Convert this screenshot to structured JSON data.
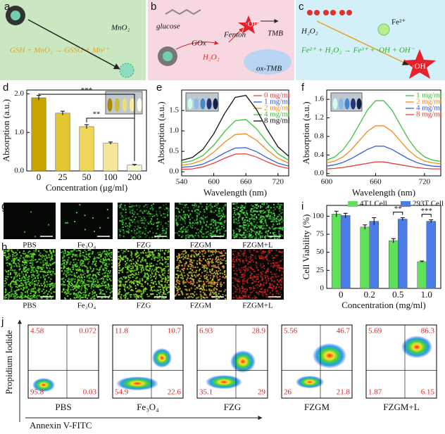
{
  "panels": {
    "a": {
      "label": "a",
      "reagent": "MnO₂",
      "equation": "GSH + MnO₂ → GSSG + Mn²⁺"
    },
    "b": {
      "label": "b",
      "glucose": "glucose",
      "enzyme": "GOx",
      "peroxide": "H₂O₂",
      "reaction": "Fenton",
      "radical": "·OH",
      "substrate": "TMB",
      "product": "ox-TMB"
    },
    "c": {
      "label": "c",
      "ion": "Fe²⁺",
      "peroxide": "H₂O₂",
      "equation": "Fe²⁺ + H₂O₂ → Fe³⁺ + ·OH + OH⁻",
      "radical": "·OH"
    },
    "g": {
      "label": "g",
      "samples": [
        "PBS",
        "Fe₃O₄",
        "FZG",
        "FZGM",
        "FZGM+L"
      ]
    },
    "h": {
      "label": "h",
      "samples": [
        "PBS",
        "Fe₃O₄",
        "FZG",
        "FZGM",
        "FZGM+L"
      ]
    },
    "j": {
      "label": "j",
      "y_label": "Propidium Iodide",
      "x_label": "Annexin V-FITC",
      "plots": [
        {
          "name": "PBS",
          "quadrants": [
            4.58,
            0.072,
            95.8,
            0.03
          ]
        },
        {
          "name": "Fe₃O₄",
          "quadrants": [
            11.8,
            10.7,
            54.9,
            22.6
          ]
        },
        {
          "name": "FZG",
          "quadrants": [
            6.93,
            28.9,
            35.1,
            29.0
          ]
        },
        {
          "name": "FZGM",
          "quadrants": [
            5.56,
            46.7,
            26.0,
            21.8
          ]
        },
        {
          "name": "FZGM+L",
          "quadrants": [
            5.69,
            86.3,
            1.87,
            6.15
          ]
        }
      ]
    }
  },
  "chart_data": [
    {
      "type": "bar",
      "label": "d",
      "x_label": "Concentration (μg/ml)",
      "y_label": "Absorption (a.u.)",
      "categories": [
        "0",
        "25",
        "50",
        "100",
        "200"
      ],
      "values": [
        1.9,
        1.5,
        1.15,
        0.72,
        0.15
      ],
      "errors": [
        0.06,
        0.05,
        0.05,
        0.03,
        0.02
      ],
      "colors": [
        "#c9a400",
        "#e2c530",
        "#efd65a",
        "#f5e796",
        "#fbf5d2"
      ],
      "ylim": [
        0,
        2.1
      ],
      "yticks": [
        {
          "value": 0,
          "label": "0.0"
        },
        {
          "value": 1,
          "label": "1.0"
        },
        {
          "value": 2,
          "label": "2.0"
        }
      ],
      "annotations": [
        "***",
        "**"
      ]
    },
    {
      "type": "line",
      "label": "e",
      "x_label": "Wavelength (nm)",
      "y_label": "Absorption (a.u.)",
      "x": [
        540,
        560,
        580,
        600,
        620,
        640,
        660,
        680,
        700,
        720,
        740
      ],
      "xlim": [
        540,
        740
      ],
      "xticks": [
        540,
        600,
        660,
        720
      ],
      "ylim": [
        -0.1,
        2.0
      ],
      "yticks": [
        {
          "value": 0,
          "label": "0.0"
        },
        {
          "value": 0.5,
          "label": "0.5"
        },
        {
          "value": 1,
          "label": "1.0"
        },
        {
          "value": 1.5,
          "label": "1.5"
        }
      ],
      "series": [
        {
          "name": "0 mg/ml",
          "color": "#e8413c",
          "values": [
            0.06,
            0.07,
            0.12,
            0.21,
            0.33,
            0.43,
            0.44,
            0.36,
            0.24,
            0.14,
            0.08
          ]
        },
        {
          "name": "1 mg/ml",
          "color": "#3a5fd8",
          "values": [
            0.11,
            0.13,
            0.19,
            0.31,
            0.46,
            0.58,
            0.59,
            0.49,
            0.34,
            0.21,
            0.14
          ]
        },
        {
          "name": "2 mg/ml",
          "color": "#f08c1c",
          "values": [
            0.16,
            0.2,
            0.29,
            0.48,
            0.72,
            0.91,
            0.93,
            0.77,
            0.53,
            0.33,
            0.21
          ]
        },
        {
          "name": "4 mg/ml",
          "color": "#3cc43c",
          "values": [
            0.22,
            0.27,
            0.4,
            0.65,
            0.98,
            1.25,
            1.28,
            1.05,
            0.72,
            0.44,
            0.28
          ]
        },
        {
          "name": "8 mg/ml",
          "color": "#111111",
          "values": [
            0.28,
            0.35,
            0.55,
            0.93,
            1.42,
            1.82,
            1.87,
            1.52,
            1.03,
            0.61,
            0.38
          ]
        }
      ]
    },
    {
      "type": "line",
      "label": "f",
      "x_label": "Wavelength (nm)",
      "y_label": "Absorption (a.u.)",
      "x": [
        600,
        610,
        620,
        630,
        640,
        650,
        660,
        670,
        680,
        690,
        700,
        710,
        720,
        730,
        740
      ],
      "xlim": [
        600,
        740
      ],
      "xticks": [
        600,
        660,
        720
      ],
      "ylim": [
        -0.05,
        1.8
      ],
      "yticks": [
        {
          "value": 0,
          "label": "0.0"
        },
        {
          "value": 0.4,
          "label": "0.4"
        },
        {
          "value": 0.8,
          "label": "0.8"
        },
        {
          "value": 1.2,
          "label": "1.2"
        },
        {
          "value": 1.6,
          "label": "1.6"
        }
      ],
      "series": [
        {
          "name": "1 mg/ml",
          "color": "#3cc43c",
          "values": [
            0.29,
            0.36,
            0.51,
            0.75,
            1.06,
            1.37,
            1.57,
            1.57,
            1.37,
            1.06,
            0.75,
            0.51,
            0.36,
            0.29,
            0.26
          ]
        },
        {
          "name": "2 mg/ml",
          "color": "#f08c1c",
          "values": [
            0.23,
            0.27,
            0.36,
            0.51,
            0.71,
            0.91,
            1.03,
            1.03,
            0.91,
            0.71,
            0.51,
            0.36,
            0.27,
            0.23,
            0.21
          ]
        },
        {
          "name": "4 mg/ml",
          "color": "#3a5fd8",
          "values": [
            0.16,
            0.19,
            0.24,
            0.32,
            0.42,
            0.52,
            0.59,
            0.59,
            0.52,
            0.42,
            0.32,
            0.24,
            0.19,
            0.16,
            0.15
          ]
        },
        {
          "name": "8 mg/ml",
          "color": "#e8413c",
          "values": [
            0.1,
            0.11,
            0.13,
            0.16,
            0.19,
            0.22,
            0.25,
            0.25,
            0.22,
            0.19,
            0.16,
            0.13,
            0.11,
            0.1,
            0.1
          ]
        }
      ]
    },
    {
      "type": "bar",
      "label": "i",
      "x_label": "Concentration (mg/ml)",
      "y_label": "Cell Viability (%)",
      "categories": [
        "0",
        "0.2",
        "0.5",
        "1.0"
      ],
      "ylim": [
        0,
        115
      ],
      "yticks": [
        0,
        25,
        50,
        75,
        100
      ],
      "series": [
        {
          "name": "4T1 Cell",
          "color": "#5ee05a",
          "values": [
            103,
            85,
            66,
            37
          ],
          "errors": [
            4,
            3,
            3,
            1
          ]
        },
        {
          "name": "293T Cell",
          "color": "#4a7de8",
          "values": [
            101,
            93,
            96,
            93
          ],
          "errors": [
            3,
            5,
            2,
            2
          ]
        }
      ],
      "annotations": [
        "**",
        "***"
      ]
    }
  ]
}
